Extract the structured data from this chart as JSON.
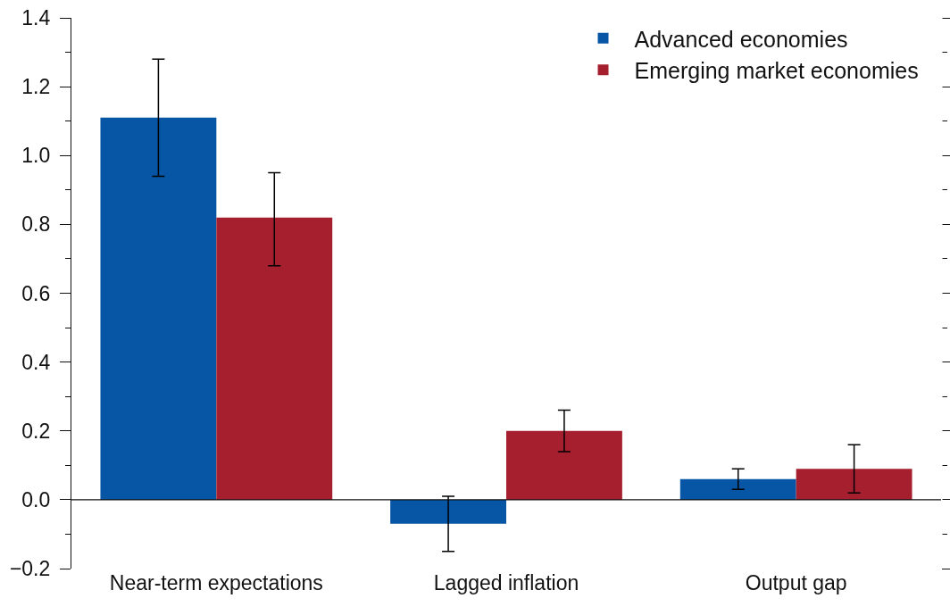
{
  "chart_data": {
    "type": "bar",
    "categories": [
      "Near-term expectations",
      "Lagged inflation",
      "Output gap"
    ],
    "series": [
      {
        "name": "Advanced economies",
        "color": "#0756a5",
        "values": [
          1.11,
          -0.07,
          0.06
        ],
        "errors": [
          [
            0.94,
            1.28
          ],
          [
            -0.15,
            0.01
          ],
          [
            0.03,
            0.09
          ]
        ]
      },
      {
        "name": "Emerging market economies",
        "color": "#a61f2e",
        "values": [
          0.82,
          0.2,
          0.09
        ],
        "errors": [
          [
            0.68,
            0.95
          ],
          [
            0.14,
            0.26
          ],
          [
            0.02,
            0.16
          ]
        ]
      }
    ],
    "ylim": [
      -0.2,
      1.4
    ],
    "yticks": [
      {
        "value": -0.2,
        "label": "−0.2"
      },
      {
        "value": -0.1,
        "label": null
      },
      {
        "value": 0,
        "label": "0.0"
      },
      {
        "value": 0.1,
        "label": null
      },
      {
        "value": 0.2,
        "label": "0.2"
      },
      {
        "value": 0.3,
        "label": null
      },
      {
        "value": 0.4,
        "label": "0.4"
      },
      {
        "value": 0.5,
        "label": null
      },
      {
        "value": 0.6,
        "label": "0.6"
      },
      {
        "value": 0.7,
        "label": null
      },
      {
        "value": 0.8,
        "label": "0.8"
      },
      {
        "value": 0.9,
        "label": null
      },
      {
        "value": 1.0,
        "label": "1.0"
      },
      {
        "value": 1.1,
        "label": null
      },
      {
        "value": 1.2,
        "label": "1.2"
      },
      {
        "value": 1.3,
        "label": null
      },
      {
        "value": 1.4,
        "label": "1.4"
      }
    ],
    "grid": false,
    "legend": "top right",
    "ref_lines": [
      {
        "axis": "y",
        "value": 0,
        "color": "#111111"
      }
    ]
  }
}
